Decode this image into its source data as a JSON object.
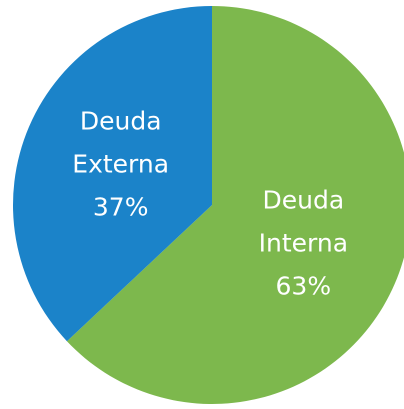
{
  "chart_data": {
    "type": "pie",
    "categories": [
      "Deuda Interna",
      "Deuda Externa"
    ],
    "values": [
      63,
      37
    ],
    "value_labels": [
      "63%",
      "37%"
    ],
    "colors": [
      "#7db84d",
      "#1b83c9"
    ],
    "start_angle": 0,
    "direction": "clockwise"
  }
}
